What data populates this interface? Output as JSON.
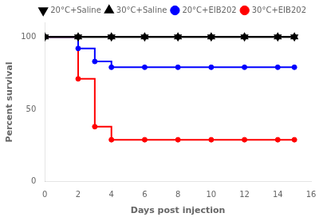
{
  "chart_data": {
    "type": "line",
    "xlabel": "Days post injection",
    "ylabel": "Percent survival",
    "xlim": [
      0,
      16
    ],
    "ylim": [
      0,
      110
    ],
    "xticks": [
      0,
      2,
      4,
      6,
      8,
      10,
      12,
      14,
      16
    ],
    "yticks": [
      0,
      50,
      100
    ],
    "grid": false,
    "legend": "upper right",
    "series": [
      {
        "name": "20°C+Saline",
        "color": "#000000",
        "marker": "triangle-down",
        "line_style": "solid",
        "x": [
          0,
          2,
          4,
          6,
          8,
          10,
          12,
          14,
          15
        ],
        "values": [
          100,
          100,
          100,
          100,
          100,
          100,
          100,
          100,
          100
        ]
      },
      {
        "name": "30°C+Saline",
        "color": "#000000",
        "marker": "triangle-up",
        "line_style": "solid",
        "x": [
          0,
          2,
          4,
          6,
          8,
          10,
          12,
          14,
          15
        ],
        "values": [
          100,
          100,
          100,
          100,
          100,
          100,
          100,
          100,
          100
        ]
      },
      {
        "name": "20°C+EIB202",
        "color": "#0000ff",
        "marker": "circle",
        "line_style": "step",
        "x": [
          2,
          3,
          4,
          6,
          8,
          10,
          12,
          14,
          15
        ],
        "values": [
          92,
          83,
          79,
          79,
          79,
          79,
          79,
          79,
          79
        ],
        "step_x": [
          0,
          2,
          2,
          3,
          3,
          4,
          4,
          15
        ],
        "step_y": [
          100,
          100,
          92,
          92,
          83,
          83,
          79,
          79
        ]
      },
      {
        "name": "30°C+EIB202",
        "color": "#ff0000",
        "marker": "circle",
        "line_style": "step",
        "x": [
          2,
          3,
          4,
          6,
          8,
          10,
          12,
          14,
          15
        ],
        "values": [
          71,
          38,
          29,
          29,
          29,
          29,
          29,
          29,
          29
        ],
        "step_x": [
          0,
          2,
          2,
          3,
          3,
          4,
          4,
          15
        ],
        "step_y": [
          100,
          100,
          71,
          71,
          38,
          38,
          29,
          29
        ]
      }
    ]
  }
}
